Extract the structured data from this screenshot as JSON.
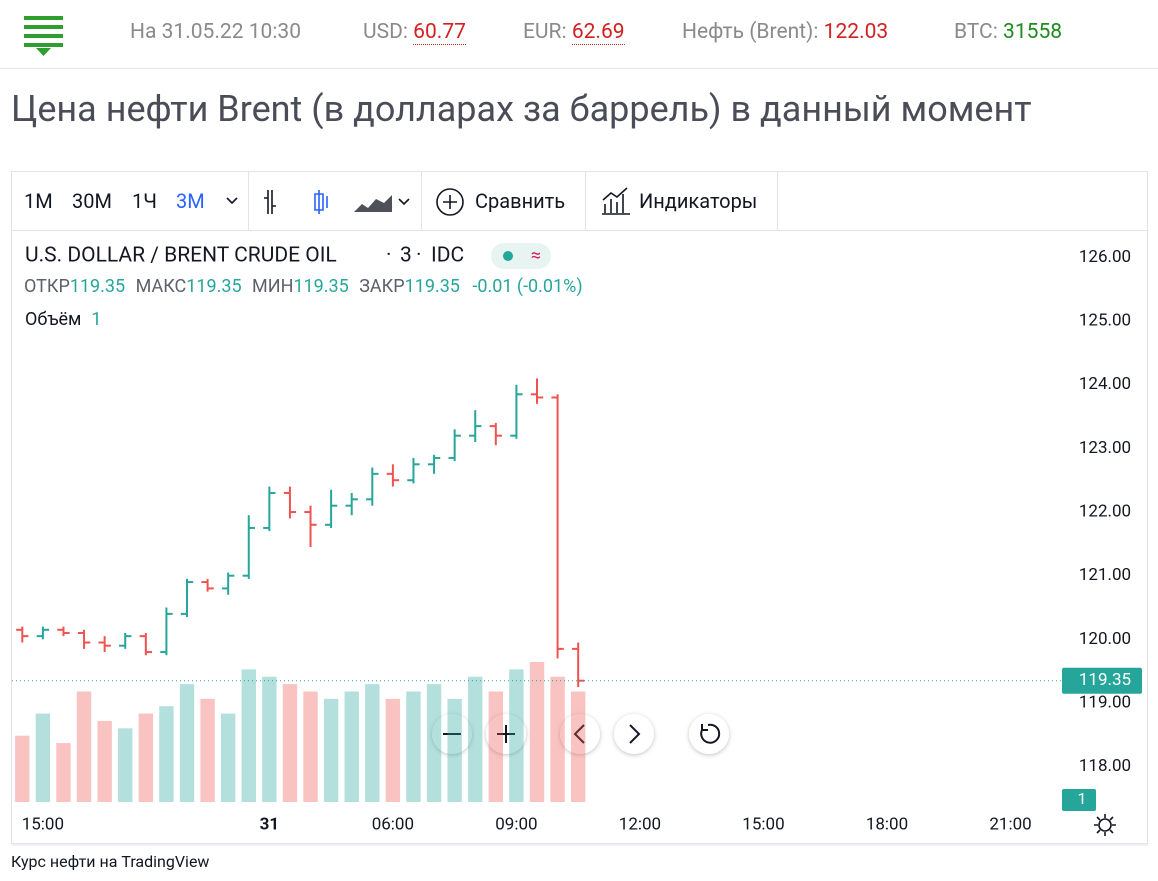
{
  "header": {
    "date": "На 31.05.22 10:30",
    "usd_label": "USD:",
    "usd": "60.77",
    "eur_label": "EUR:",
    "eur": "62.69",
    "oil_label": "Нефть (Brent):",
    "oil": "122.03",
    "btc_label": "BTC:",
    "btc": "31558"
  },
  "page_title": "Цена нефти Brent (в долларах за баррель) в данный момент",
  "toolbar": {
    "intervals": [
      "1М",
      "30М",
      "1Ч",
      "3М"
    ],
    "compare": "Сравнить",
    "indicators": "Индикаторы"
  },
  "footer": "Курс нефти на TradingView",
  "chart_data": {
    "type": "ohlc",
    "symbol": "U.S. DOLLAR / BRENT CRUDE OIL",
    "interval": "3",
    "exchange": "IDC",
    "legend": {
      "open_label": "ОТКР",
      "open": "119.35",
      "high_label": "МАКС",
      "high": "119.35",
      "low_label": "МИН",
      "low": "119.35",
      "close_label": "ЗАКР",
      "close": "119.35",
      "change": "-0.01 (-0.01%)",
      "volume_label": "Объём",
      "volume": "1"
    },
    "categories": [
      null,
      "15:00",
      null,
      null,
      null,
      null,
      null,
      null,
      null,
      null,
      null,
      null,
      "31",
      null,
      null,
      null,
      null,
      null,
      "06:00",
      null,
      null,
      null,
      null,
      null,
      "09:00",
      null,
      null,
      null,
      null,
      null,
      "12:00",
      null,
      null,
      null,
      null,
      null,
      "15:00",
      null,
      null,
      null,
      null,
      null,
      "18:00",
      null,
      null,
      null,
      null,
      null,
      "21:00",
      null,
      null
    ],
    "open": [
      120.15,
      120.05,
      120.15,
      120.1,
      119.95,
      119.9,
      120.05,
      119.8,
      120.4,
      120.9,
      120.8,
      121.0,
      121.75,
      122.3,
      122.0,
      121.8,
      122.1,
      122.2,
      122.6,
      122.5,
      122.75,
      122.85,
      123.2,
      123.35,
      123.2,
      123.85,
      123.8,
      119.85,
      null,
      null,
      null,
      null,
      null,
      null,
      null,
      null,
      null,
      null,
      null,
      null,
      null,
      null,
      null,
      null,
      null,
      null,
      null,
      null,
      null,
      null,
      null
    ],
    "high": [
      120.2,
      120.2,
      120.2,
      120.15,
      120.05,
      120.1,
      120.1,
      120.5,
      120.95,
      120.95,
      121.05,
      121.95,
      122.4,
      122.4,
      122.1,
      122.35,
      122.3,
      122.7,
      122.75,
      122.85,
      122.9,
      123.3,
      123.6,
      123.4,
      124.0,
      124.1,
      123.85,
      119.95,
      null,
      null,
      null,
      null,
      null,
      null,
      null,
      null,
      null,
      null,
      null,
      null,
      null,
      null,
      null,
      null,
      null,
      null,
      null,
      null,
      null,
      null,
      null
    ],
    "low": [
      119.95,
      120.0,
      120.05,
      119.85,
      119.8,
      119.85,
      119.75,
      119.75,
      120.35,
      120.75,
      120.7,
      120.95,
      121.7,
      121.9,
      121.45,
      121.75,
      121.95,
      122.1,
      122.4,
      122.45,
      122.6,
      122.8,
      123.1,
      123.05,
      123.15,
      123.7,
      119.7,
      119.25,
      null,
      null,
      null,
      null,
      null,
      null,
      null,
      null,
      null,
      null,
      null,
      null,
      null,
      null,
      null,
      null,
      null,
      null,
      null,
      null,
      null,
      null,
      null
    ],
    "close": [
      120.05,
      120.15,
      120.1,
      119.95,
      119.9,
      120.05,
      119.8,
      120.4,
      120.9,
      120.8,
      121.0,
      121.75,
      122.3,
      122.0,
      121.8,
      122.1,
      122.2,
      122.6,
      122.5,
      122.75,
      122.85,
      123.2,
      123.35,
      123.2,
      123.85,
      123.8,
      119.85,
      119.35,
      null,
      null,
      null,
      null,
      null,
      null,
      null,
      null,
      null,
      null,
      null,
      null,
      null,
      null,
      null,
      null,
      null,
      null,
      null,
      null,
      null,
      null,
      null
    ],
    "volume": [
      45,
      60,
      40,
      75,
      55,
      50,
      60,
      65,
      80,
      70,
      60,
      90,
      85,
      80,
      75,
      70,
      75,
      80,
      70,
      75,
      80,
      70,
      85,
      75,
      90,
      95,
      85,
      75,
      null,
      null,
      null,
      null,
      null,
      null,
      null,
      null,
      null,
      null,
      null,
      null,
      null,
      null,
      null,
      null,
      null,
      null,
      null,
      null,
      null,
      null,
      null
    ],
    "up_color": "#26a69a",
    "down_color": "#ef5350",
    "ylim": [
      117.35,
      126.4
    ],
    "yticks": [
      {
        "value": 118,
        "label": "118.00"
      },
      {
        "value": 119,
        "label": "119.00"
      },
      {
        "value": 120,
        "label": "120.00"
      },
      {
        "value": 121,
        "label": "121.00"
      },
      {
        "value": 122,
        "label": "122.00"
      },
      {
        "value": 123,
        "label": "123.00"
      },
      {
        "value": 124,
        "label": "124.00"
      },
      {
        "value": 125,
        "label": "125.00"
      },
      {
        "value": 126,
        "label": "126.00"
      }
    ],
    "last_price": 119.35,
    "last_volume": 1,
    "grid": false
  }
}
